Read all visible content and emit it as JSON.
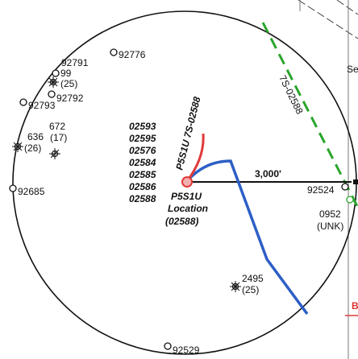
{
  "colors": {
    "circle": "#111111",
    "radius_line": "#111111",
    "green_dashed": "#2aa52a",
    "blue_path": "#2d5fc6",
    "red_path": "#e03a3a",
    "location_marker": "#e03a3a"
  },
  "radius": {
    "label": "3,000'"
  },
  "wells": [
    {
      "id": "92776",
      "label": "92776",
      "icon": "dry-hole-icon"
    },
    {
      "id": "92791",
      "label": "92791",
      "icon": "dry-hole-icon"
    },
    {
      "id": "99",
      "label": "99",
      "sub": "(25)",
      "icon": "gas-well-icon"
    },
    {
      "id": "92792",
      "label": "92792",
      "icon": "dry-hole-icon"
    },
    {
      "id": "92793",
      "label": "92793",
      "icon": "dry-hole-icon"
    },
    {
      "id": "672",
      "label": "672",
      "sub": "(17)",
      "icon": "plugged-well-icon"
    },
    {
      "id": "636",
      "label": "636",
      "sub": "(26)",
      "icon": "gas-well-icon"
    },
    {
      "id": "92685",
      "label": "92685",
      "icon": "dry-hole-icon"
    },
    {
      "id": "92524",
      "label": "92524",
      "icon": "dry-hole-icon"
    },
    {
      "id": "0952",
      "label": "0952",
      "sub": "(UNK)",
      "icon": "none"
    },
    {
      "id": "2495",
      "label": "2495",
      "sub": "(25)",
      "icon": "gas-well-icon"
    },
    {
      "id": "92529",
      "label": "92529",
      "icon": "dry-hole-icon"
    }
  ],
  "well_list": [
    "02593",
    "02595",
    "02576",
    "02584",
    "02585",
    "02586",
    "02588"
  ],
  "location": {
    "name": "P5S1U",
    "word": "Location",
    "id": "(02588)"
  },
  "red_path_label": "P5S1U 7S-02588",
  "green_path_label": "7S-02588",
  "edge_labels": {
    "top_right": "Se",
    "bottom_right": "B"
  }
}
